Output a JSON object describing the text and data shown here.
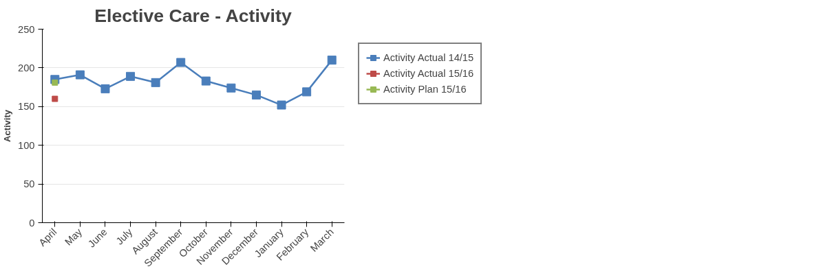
{
  "chart_data": {
    "type": "line",
    "title": "Elective Care - Activity",
    "ylabel": "Activity",
    "categories": [
      "April",
      "May",
      "June",
      "July",
      "August",
      "September",
      "October",
      "November",
      "December",
      "January",
      "February",
      "March"
    ],
    "series": [
      {
        "name": "Activity Actual 14/15",
        "color": "#4a7ebb",
        "values": [
          185,
          191,
          173,
          189,
          181,
          207,
          183,
          174,
          165,
          152,
          169,
          210
        ]
      },
      {
        "name": "Activity Actual 15/16",
        "color": "#be4b48",
        "values": [
          160,
          null,
          null,
          null,
          null,
          null,
          null,
          null,
          null,
          null,
          null,
          null
        ]
      },
      {
        "name": "Activity Plan 15/16",
        "color": "#98b954",
        "values": [
          181,
          null,
          null,
          null,
          null,
          null,
          null,
          null,
          null,
          null,
          null,
          null
        ]
      }
    ],
    "ylim": [
      0,
      250
    ],
    "yticks": [
      0,
      50,
      100,
      150,
      200,
      250
    ],
    "grid": "y",
    "legend": "right",
    "marker": "square",
    "line_style": "solid"
  }
}
